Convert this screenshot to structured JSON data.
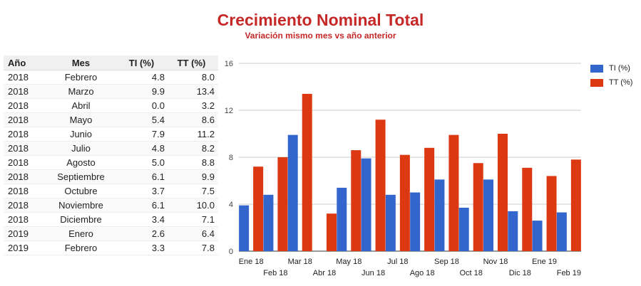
{
  "header": {
    "title": "Crecimiento Nominal Total",
    "subtitle": "Variación mismo mes vs año anterior"
  },
  "table": {
    "headers": [
      "Año",
      "Mes",
      "TI (%)",
      "TT (%)"
    ],
    "rows": [
      [
        "2018",
        "Febrero",
        "4.8",
        "8.0"
      ],
      [
        "2018",
        "Marzo",
        "9.9",
        "13.4"
      ],
      [
        "2018",
        "Abril",
        "0.0",
        "3.2"
      ],
      [
        "2018",
        "Mayo",
        "5.4",
        "8.6"
      ],
      [
        "2018",
        "Junio",
        "7.9",
        "11.2"
      ],
      [
        "2018",
        "Julio",
        "4.8",
        "8.2"
      ],
      [
        "2018",
        "Agosto",
        "5.0",
        "8.8"
      ],
      [
        "2018",
        "Septiembre",
        "6.1",
        "9.9"
      ],
      [
        "2018",
        "Octubre",
        "3.7",
        "7.5"
      ],
      [
        "2018",
        "Noviembre",
        "6.1",
        "10.0"
      ],
      [
        "2018",
        "Diciembre",
        "3.4",
        "7.1"
      ],
      [
        "2019",
        "Enero",
        "2.6",
        "6.4"
      ],
      [
        "2019",
        "Febrero",
        "3.3",
        "7.8"
      ]
    ]
  },
  "chart_data": {
    "type": "bar",
    "categories": [
      "Ene 18",
      "Feb 18",
      "Mar 18",
      "Abr 18",
      "May 18",
      "Jun 18",
      "Jul 18",
      "Ago 18",
      "Sep 18",
      "Oct 18",
      "Nov 18",
      "Dic 18",
      "Ene 19",
      "Feb 19"
    ],
    "series": [
      {
        "name": "TI (%)",
        "color": "#3366cc",
        "values": [
          3.9,
          4.8,
          9.9,
          0.0,
          5.4,
          7.9,
          4.8,
          5.0,
          6.1,
          3.7,
          6.1,
          3.4,
          2.6,
          3.3
        ]
      },
      {
        "name": "TT (%)",
        "color": "#dc3912",
        "values": [
          7.2,
          8.0,
          13.4,
          3.2,
          8.6,
          11.2,
          8.2,
          8.8,
          9.9,
          7.5,
          10.0,
          7.1,
          6.4,
          7.8
        ]
      }
    ],
    "ylim": [
      0,
      16
    ],
    "yticks": [
      0,
      4,
      8,
      12,
      16
    ],
    "grid": true,
    "legend": "right"
  }
}
